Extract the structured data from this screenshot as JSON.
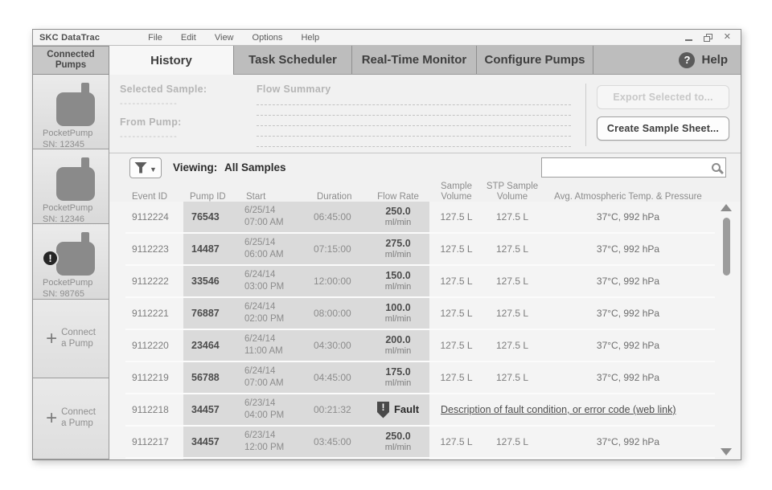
{
  "window": {
    "title": "SKC DataTrac",
    "menu": [
      "File",
      "Edit",
      "View",
      "Options",
      "Help"
    ],
    "controls": {
      "minimize": "–",
      "close": "✕"
    }
  },
  "tabs": {
    "items": [
      {
        "label": "History",
        "active": true
      },
      {
        "label": "Task Scheduler",
        "active": false
      },
      {
        "label": "Real-Time Monitor",
        "active": false
      },
      {
        "label": "Configure Pumps",
        "active": false
      }
    ],
    "help_label": "Help",
    "help_icon_glyph": "?"
  },
  "sidebar": {
    "header": "Connected Pumps",
    "pumps": [
      {
        "model": "PocketPump",
        "sn": "SN: 12345",
        "warning": false
      },
      {
        "model": "PocketPump",
        "sn": "SN: 12346",
        "warning": false
      },
      {
        "model": "PocketPump",
        "sn": "SN: 98765",
        "warning": true
      }
    ],
    "warning_glyph": "!",
    "plus_glyph": "+",
    "connect_buttons": [
      {
        "line1": "Connect",
        "line2": "a Pump"
      },
      {
        "line1": "Connect",
        "line2": "a Pump"
      }
    ]
  },
  "info_panel": {
    "selected_sample_label": "Selected Sample:",
    "selected_sample_value": "--------------",
    "from_pump_label": "From Pump:",
    "from_pump_value": "--------------",
    "flow_summary_label": "Flow Summary",
    "export_button": "Export Selected to...",
    "create_button": "Create Sample Sheet..."
  },
  "toolbar": {
    "viewing_label": "Viewing:",
    "viewing_value": "All Samples",
    "search_value": ""
  },
  "table": {
    "columns": [
      {
        "l1": "Event ID",
        "l2": ""
      },
      {
        "l1": "Pump ID",
        "l2": ""
      },
      {
        "l1": "Start",
        "l2": ""
      },
      {
        "l1": "Duration",
        "l2": ""
      },
      {
        "l1": "Flow Rate",
        "l2": ""
      },
      {
        "l1": "Sample",
        "l2": "Volume"
      },
      {
        "l1": "STP Sample",
        "l2": "Volume"
      },
      {
        "l1": "Avg. Atmospheric Temp. & Pressure",
        "l2": ""
      }
    ],
    "fault_glyph": "!",
    "rows": [
      {
        "event_id": "9112224",
        "pump_id": "76543",
        "start_date": "6/25/14",
        "start_time": "07:00 AM",
        "duration": "06:45:00",
        "flow_rate": "250.0",
        "flow_unit": "ml/min",
        "sample_volume": "127.5 L",
        "stp_volume": "127.5 L",
        "avg_temp_pressure": "37°C, 992 hPa",
        "fault": false
      },
      {
        "event_id": "9112223",
        "pump_id": "14487",
        "start_date": "6/25/14",
        "start_time": "06:00 AM",
        "duration": "07:15:00",
        "flow_rate": "275.0",
        "flow_unit": "ml/min",
        "sample_volume": "127.5 L",
        "stp_volume": "127.5 L",
        "avg_temp_pressure": "37°C, 992 hPa",
        "fault": false
      },
      {
        "event_id": "9112222",
        "pump_id": "33546",
        "start_date": "6/24/14",
        "start_time": "03:00 PM",
        "duration": "12:00:00",
        "flow_rate": "150.0",
        "flow_unit": "ml/min",
        "sample_volume": "127.5 L",
        "stp_volume": "127.5 L",
        "avg_temp_pressure": "37°C, 992 hPa",
        "fault": false
      },
      {
        "event_id": "9112221",
        "pump_id": "76887",
        "start_date": "6/24/14",
        "start_time": "02:00 PM",
        "duration": "08:00:00",
        "flow_rate": "100.0",
        "flow_unit": "ml/min",
        "sample_volume": "127.5 L",
        "stp_volume": "127.5 L",
        "avg_temp_pressure": "37°C, 992 hPa",
        "fault": false
      },
      {
        "event_id": "9112220",
        "pump_id": "23464",
        "start_date": "6/24/14",
        "start_time": "11:00 AM",
        "duration": "04:30:00",
        "flow_rate": "200.0",
        "flow_unit": "ml/min",
        "sample_volume": "127.5 L",
        "stp_volume": "127.5 L",
        "avg_temp_pressure": "37°C, 992 hPa",
        "fault": false
      },
      {
        "event_id": "9112219",
        "pump_id": "56788",
        "start_date": "6/24/14",
        "start_time": "07:00 AM",
        "duration": "04:45:00",
        "flow_rate": "175.0",
        "flow_unit": "ml/min",
        "sample_volume": "127.5 L",
        "stp_volume": "127.5 L",
        "avg_temp_pressure": "37°C, 992 hPa",
        "fault": false
      },
      {
        "event_id": "9112218",
        "pump_id": "34457",
        "start_date": "6/23/14",
        "start_time": "04:00 PM",
        "duration": "00:21:32",
        "fault": true,
        "fault_label": "Fault",
        "fault_link": "Description of fault condition, or error code (web link)"
      },
      {
        "event_id": "9112217",
        "pump_id": "34457",
        "start_date": "6/23/14",
        "start_time": "12:00 PM",
        "duration": "03:45:00",
        "flow_rate": "250.0",
        "flow_unit": "ml/min",
        "sample_volume": "127.5 L",
        "stp_volume": "127.5 L",
        "avg_temp_pressure": "37°C, 992 hPa",
        "fault": false
      }
    ]
  },
  "colors": {
    "band": "#dadada",
    "warning_badge": "#262626",
    "fault_icon": "#4a4a4a"
  }
}
